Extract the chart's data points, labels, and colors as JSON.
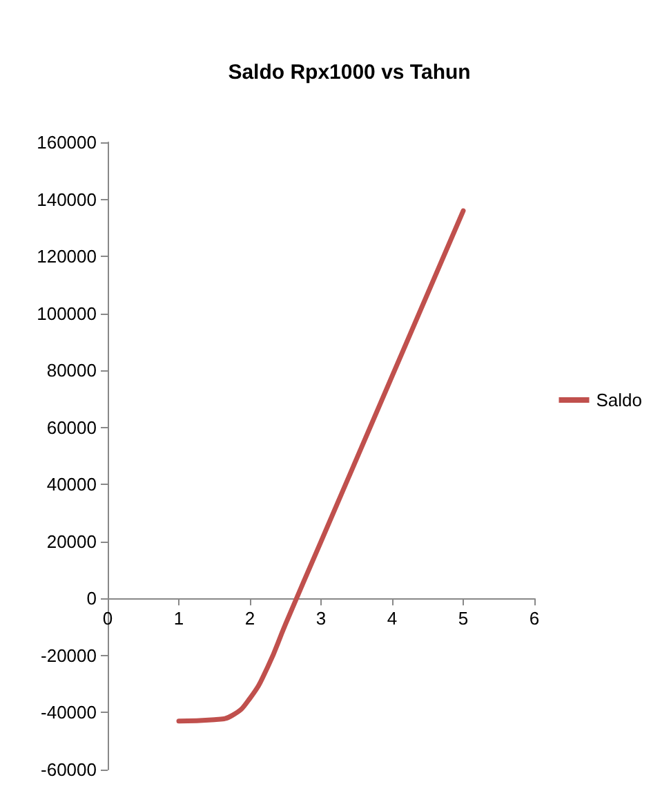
{
  "chart_data": {
    "type": "line",
    "title": "Saldo Rpx1000 vs Tahun",
    "x": [
      1,
      1.5,
      1.75,
      2,
      2.25,
      2.5,
      3,
      4,
      5
    ],
    "series": [
      {
        "name": "Saldo",
        "color": "#c0504d",
        "values": [
          -43000,
          -42500,
          -41000,
          -35000,
          -24000,
          -9000,
          20000,
          78000,
          136000
        ]
      }
    ],
    "xlim": [
      0,
      6
    ],
    "xticks": [
      0,
      1,
      2,
      3,
      4,
      5,
      6
    ],
    "ylim": [
      -60000,
      160000
    ],
    "yticks": [
      -60000,
      -40000,
      -20000,
      0,
      20000,
      40000,
      60000,
      80000,
      100000,
      120000,
      140000,
      160000
    ],
    "grid": false,
    "legend": "right",
    "marker": "none",
    "line_style": "solid"
  }
}
